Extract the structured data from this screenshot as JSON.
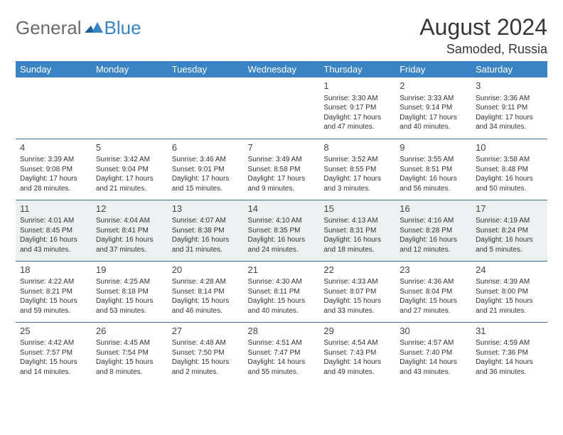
{
  "brand": {
    "general": "General",
    "blue": "Blue"
  },
  "title": {
    "month": "August 2024",
    "location": "Samoded, Russia"
  },
  "style": {
    "header_bg": "#3a84c4",
    "header_text": "#ffffff",
    "border_color": "#3a6f9e",
    "shaded_bg": "#eef1f2",
    "logo_gray": "#6a6a6a",
    "logo_blue": "#3a84c4"
  },
  "weekdays": [
    "Sunday",
    "Monday",
    "Tuesday",
    "Wednesday",
    "Thursday",
    "Friday",
    "Saturday"
  ],
  "weeks": [
    {
      "shaded": false,
      "days": [
        null,
        null,
        null,
        null,
        {
          "n": "1",
          "sunrise": "3:30 AM",
          "sunset": "9:17 PM",
          "dl1": "Daylight: 17 hours",
          "dl2": "and 47 minutes."
        },
        {
          "n": "2",
          "sunrise": "3:33 AM",
          "sunset": "9:14 PM",
          "dl1": "Daylight: 17 hours",
          "dl2": "and 40 minutes."
        },
        {
          "n": "3",
          "sunrise": "3:36 AM",
          "sunset": "9:11 PM",
          "dl1": "Daylight: 17 hours",
          "dl2": "and 34 minutes."
        }
      ]
    },
    {
      "shaded": false,
      "days": [
        {
          "n": "4",
          "sunrise": "3:39 AM",
          "sunset": "9:08 PM",
          "dl1": "Daylight: 17 hours",
          "dl2": "and 28 minutes."
        },
        {
          "n": "5",
          "sunrise": "3:42 AM",
          "sunset": "9:04 PM",
          "dl1": "Daylight: 17 hours",
          "dl2": "and 21 minutes."
        },
        {
          "n": "6",
          "sunrise": "3:46 AM",
          "sunset": "9:01 PM",
          "dl1": "Daylight: 17 hours",
          "dl2": "and 15 minutes."
        },
        {
          "n": "7",
          "sunrise": "3:49 AM",
          "sunset": "8:58 PM",
          "dl1": "Daylight: 17 hours",
          "dl2": "and 9 minutes."
        },
        {
          "n": "8",
          "sunrise": "3:52 AM",
          "sunset": "8:55 PM",
          "dl1": "Daylight: 17 hours",
          "dl2": "and 3 minutes."
        },
        {
          "n": "9",
          "sunrise": "3:55 AM",
          "sunset": "8:51 PM",
          "dl1": "Daylight: 16 hours",
          "dl2": "and 56 minutes."
        },
        {
          "n": "10",
          "sunrise": "3:58 AM",
          "sunset": "8:48 PM",
          "dl1": "Daylight: 16 hours",
          "dl2": "and 50 minutes."
        }
      ]
    },
    {
      "shaded": true,
      "days": [
        {
          "n": "11",
          "sunrise": "4:01 AM",
          "sunset": "8:45 PM",
          "dl1": "Daylight: 16 hours",
          "dl2": "and 43 minutes."
        },
        {
          "n": "12",
          "sunrise": "4:04 AM",
          "sunset": "8:41 PM",
          "dl1": "Daylight: 16 hours",
          "dl2": "and 37 minutes."
        },
        {
          "n": "13",
          "sunrise": "4:07 AM",
          "sunset": "8:38 PM",
          "dl1": "Daylight: 16 hours",
          "dl2": "and 31 minutes."
        },
        {
          "n": "14",
          "sunrise": "4:10 AM",
          "sunset": "8:35 PM",
          "dl1": "Daylight: 16 hours",
          "dl2": "and 24 minutes."
        },
        {
          "n": "15",
          "sunrise": "4:13 AM",
          "sunset": "8:31 PM",
          "dl1": "Daylight: 16 hours",
          "dl2": "and 18 minutes."
        },
        {
          "n": "16",
          "sunrise": "4:16 AM",
          "sunset": "8:28 PM",
          "dl1": "Daylight: 16 hours",
          "dl2": "and 12 minutes."
        },
        {
          "n": "17",
          "sunrise": "4:19 AM",
          "sunset": "8:24 PM",
          "dl1": "Daylight: 16 hours",
          "dl2": "and 5 minutes."
        }
      ]
    },
    {
      "shaded": false,
      "days": [
        {
          "n": "18",
          "sunrise": "4:22 AM",
          "sunset": "8:21 PM",
          "dl1": "Daylight: 15 hours",
          "dl2": "and 59 minutes."
        },
        {
          "n": "19",
          "sunrise": "4:25 AM",
          "sunset": "8:18 PM",
          "dl1": "Daylight: 15 hours",
          "dl2": "and 53 minutes."
        },
        {
          "n": "20",
          "sunrise": "4:28 AM",
          "sunset": "8:14 PM",
          "dl1": "Daylight: 15 hours",
          "dl2": "and 46 minutes."
        },
        {
          "n": "21",
          "sunrise": "4:30 AM",
          "sunset": "8:11 PM",
          "dl1": "Daylight: 15 hours",
          "dl2": "and 40 minutes."
        },
        {
          "n": "22",
          "sunrise": "4:33 AM",
          "sunset": "8:07 PM",
          "dl1": "Daylight: 15 hours",
          "dl2": "and 33 minutes."
        },
        {
          "n": "23",
          "sunrise": "4:36 AM",
          "sunset": "8:04 PM",
          "dl1": "Daylight: 15 hours",
          "dl2": "and 27 minutes."
        },
        {
          "n": "24",
          "sunrise": "4:39 AM",
          "sunset": "8:00 PM",
          "dl1": "Daylight: 15 hours",
          "dl2": "and 21 minutes."
        }
      ]
    },
    {
      "shaded": false,
      "days": [
        {
          "n": "25",
          "sunrise": "4:42 AM",
          "sunset": "7:57 PM",
          "dl1": "Daylight: 15 hours",
          "dl2": "and 14 minutes."
        },
        {
          "n": "26",
          "sunrise": "4:45 AM",
          "sunset": "7:54 PM",
          "dl1": "Daylight: 15 hours",
          "dl2": "and 8 minutes."
        },
        {
          "n": "27",
          "sunrise": "4:48 AM",
          "sunset": "7:50 PM",
          "dl1": "Daylight: 15 hours",
          "dl2": "and 2 minutes."
        },
        {
          "n": "28",
          "sunrise": "4:51 AM",
          "sunset": "7:47 PM",
          "dl1": "Daylight: 14 hours",
          "dl2": "and 55 minutes."
        },
        {
          "n": "29",
          "sunrise": "4:54 AM",
          "sunset": "7:43 PM",
          "dl1": "Daylight: 14 hours",
          "dl2": "and 49 minutes."
        },
        {
          "n": "30",
          "sunrise": "4:57 AM",
          "sunset": "7:40 PM",
          "dl1": "Daylight: 14 hours",
          "dl2": "and 43 minutes."
        },
        {
          "n": "31",
          "sunrise": "4:59 AM",
          "sunset": "7:36 PM",
          "dl1": "Daylight: 14 hours",
          "dl2": "and 36 minutes."
        }
      ]
    }
  ],
  "labels": {
    "sunrise": "Sunrise: ",
    "sunset": "Sunset: "
  }
}
